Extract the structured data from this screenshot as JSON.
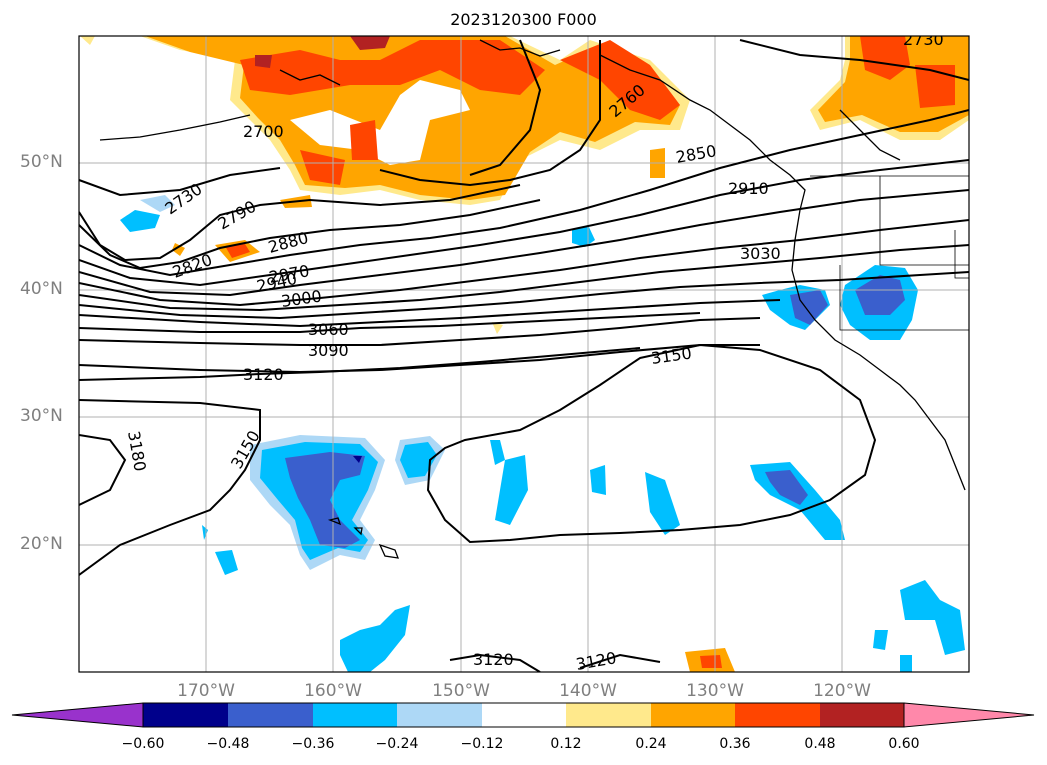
{
  "title": "2023120300 F000",
  "latitude_labels": [
    "50°N",
    "40°N",
    "30°N",
    "20°N"
  ],
  "longitude_labels": [
    "170°W",
    "160°W",
    "150°W",
    "140°W",
    "130°W",
    "120°W"
  ],
  "contour_labels": [
    "2700",
    "2730",
    "2730",
    "2760",
    "2790",
    "2820",
    "2850",
    "2880",
    "2910",
    "2940",
    "2970",
    "3000",
    "3030",
    "3060",
    "3090",
    "3120",
    "3150",
    "3150",
    "3180",
    "3120",
    "3120"
  ],
  "colorbar": {
    "ticks": [
      "−0.60",
      "−0.48",
      "−0.36",
      "−0.24",
      "−0.12",
      "0.12",
      "0.24",
      "0.36",
      "0.48",
      "0.60"
    ],
    "colors": [
      "#9932cc",
      "#00008b",
      "#3a5fcd",
      "#00bfff",
      "#add8f6",
      "#ffffff",
      "#ffe98c",
      "#ffa500",
      "#ff4500",
      "#b22222",
      "#ff88aa"
    ]
  }
}
